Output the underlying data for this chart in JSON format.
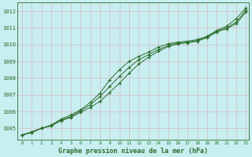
{
  "title": "Graphe pression niveau de la mer (hPa)",
  "background_color": "#c8eef0",
  "grid_color": "#d4b8c0",
  "line_color": "#2d6e2d",
  "marker_color": "#2d6e2d",
  "xlim_min": -0.5,
  "xlim_max": 23.3,
  "ylim_min": 1004.3,
  "ylim_max": 1012.5,
  "yticks": [
    1005,
    1006,
    1007,
    1008,
    1009,
    1010,
    1011,
    1012
  ],
  "xticks": [
    0,
    1,
    2,
    3,
    4,
    5,
    6,
    7,
    8,
    9,
    10,
    11,
    12,
    13,
    14,
    15,
    16,
    17,
    18,
    19,
    20,
    21,
    22,
    23
  ],
  "hours": [
    0,
    1,
    2,
    3,
    4,
    5,
    6,
    7,
    8,
    9,
    10,
    11,
    12,
    13,
    14,
    15,
    16,
    17,
    18,
    19,
    20,
    21,
    22,
    23
  ],
  "line1": [
    1004.6,
    1004.8,
    1005.0,
    1005.2,
    1005.55,
    1005.8,
    1006.1,
    1006.55,
    1007.1,
    1007.9,
    1008.5,
    1009.0,
    1009.3,
    1009.55,
    1009.85,
    1010.05,
    1010.15,
    1010.2,
    1010.3,
    1010.5,
    1010.85,
    1011.1,
    1011.55,
    1012.2
  ],
  "line2": [
    1004.6,
    1004.75,
    1005.0,
    1005.15,
    1005.5,
    1005.7,
    1006.05,
    1006.4,
    1006.9,
    1007.5,
    1008.1,
    1008.65,
    1009.1,
    1009.4,
    1009.7,
    1009.95,
    1010.1,
    1010.15,
    1010.25,
    1010.45,
    1010.8,
    1011.0,
    1011.35,
    1012.05
  ],
  "line3": [
    1004.6,
    1004.75,
    1005.0,
    1005.15,
    1005.45,
    1005.65,
    1005.95,
    1006.25,
    1006.6,
    1007.15,
    1007.7,
    1008.3,
    1008.85,
    1009.25,
    1009.6,
    1009.88,
    1010.05,
    1010.1,
    1010.2,
    1010.42,
    1010.75,
    1010.95,
    1011.25,
    1011.95
  ]
}
